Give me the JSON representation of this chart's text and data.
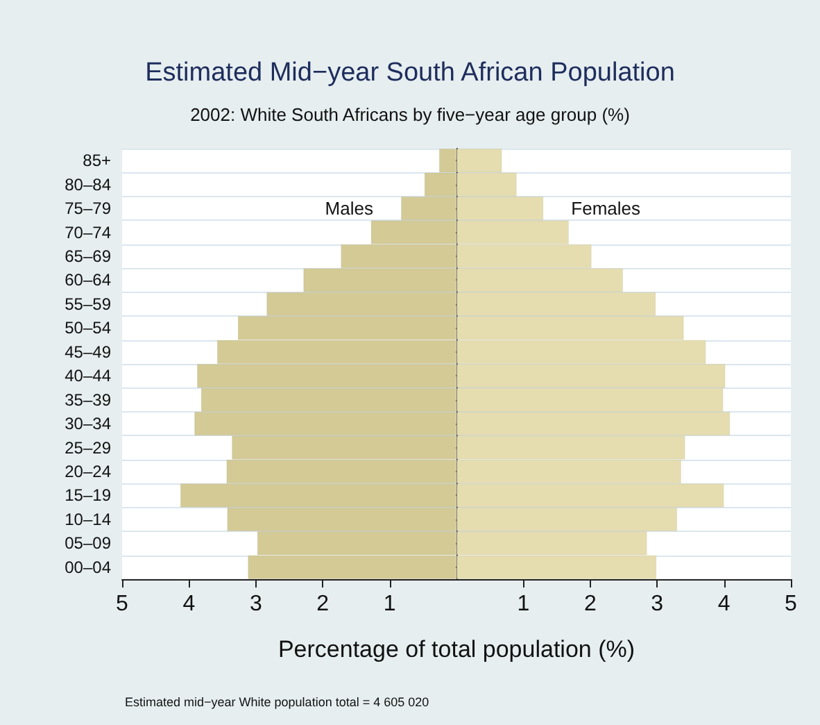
{
  "chart_data": {
    "type": "bar",
    "orientation": "horizontal",
    "stacked": true,
    "title": "Estimated Mid−year South African Population",
    "subtitle": "2002: White South Africans by five−year age group (%)",
    "xlabel": "Percentage of total population (%)",
    "categories": [
      "85+",
      "80–84",
      "75–79",
      "70–74",
      "65–69",
      "60–64",
      "55–59",
      "50–54",
      "45–49",
      "40–44",
      "35–39",
      "30–34",
      "25–29",
      "20–24",
      "15–19",
      "10–14",
      "05–09",
      "00–04"
    ],
    "series": [
      {
        "name": "Males",
        "color": "#d3ca96",
        "values": [
          -0.26,
          -0.48,
          -0.83,
          -1.28,
          -1.73,
          -2.29,
          -2.84,
          -3.27,
          -3.58,
          -3.88,
          -3.82,
          -3.92,
          -3.36,
          -3.44,
          -4.13,
          -3.43,
          -2.98,
          -3.12
        ]
      },
      {
        "name": "Females",
        "color": "#e5ddb0",
        "values": [
          0.68,
          0.9,
          1.3,
          1.68,
          2.02,
          2.49,
          2.98,
          3.4,
          3.73,
          4.02,
          3.99,
          4.09,
          3.42,
          3.36,
          4.0,
          3.3,
          2.85,
          2.99
        ]
      }
    ],
    "xlim": [
      -5,
      5
    ],
    "xticks": [
      {
        "value": -5,
        "label": "5"
      },
      {
        "value": -4,
        "label": "4"
      },
      {
        "value": -3,
        "label": "3"
      },
      {
        "value": -2,
        "label": "2"
      },
      {
        "value": -1,
        "label": "1"
      },
      {
        "value": 1,
        "label": "1"
      },
      {
        "value": 2,
        "label": "2"
      },
      {
        "value": 3,
        "label": "3"
      },
      {
        "value": 4,
        "label": "4"
      },
      {
        "value": 5,
        "label": "5"
      }
    ],
    "grid": "y",
    "legend": false,
    "annotations": [
      "Estimated mid−year White population total = 4 605 020"
    ]
  }
}
